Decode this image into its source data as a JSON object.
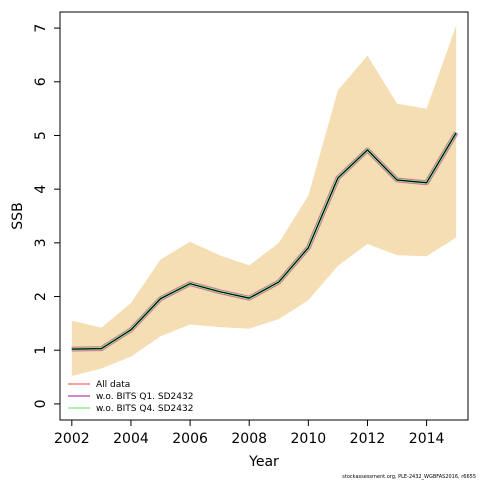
{
  "chart_data": {
    "type": "area",
    "xlabel": "Year",
    "ylabel": "SSB",
    "xlim": [
      2001.6,
      2015.4
    ],
    "ylim": [
      -0.3,
      7.3
    ],
    "x_ticks": [
      2002,
      2004,
      2006,
      2008,
      2010,
      2012,
      2014
    ],
    "y_ticks": [
      0,
      1,
      2,
      3,
      4,
      5,
      6,
      7
    ],
    "grid": false,
    "legend_placement": "bottom-left",
    "x": [
      2002,
      2003,
      2004,
      2005,
      2006,
      2007,
      2008,
      2009,
      2010,
      2011,
      2012,
      2013,
      2014,
      2015
    ],
    "band": {
      "color": "#f5deb3",
      "upper": [
        1.55,
        1.42,
        1.88,
        2.69,
        3.02,
        2.77,
        2.58,
        3.0,
        3.88,
        5.84,
        6.49,
        5.59,
        5.5,
        7.05
      ],
      "lower": [
        0.52,
        0.66,
        0.88,
        1.26,
        1.48,
        1.43,
        1.4,
        1.58,
        1.93,
        2.57,
        2.98,
        2.77,
        2.75,
        3.1
      ]
    },
    "series": [
      {
        "name": "All data",
        "color": "#f08080",
        "values": [
          1.02,
          1.03,
          1.38,
          1.96,
          2.24,
          2.09,
          1.97,
          2.27,
          2.91,
          4.21,
          4.73,
          4.17,
          4.12,
          5.05
        ]
      },
      {
        "name": "w.o. BITS Q1. SD2432",
        "color": "#c060c0",
        "values": [
          1.02,
          1.03,
          1.38,
          1.96,
          2.24,
          2.09,
          1.97,
          2.27,
          2.91,
          4.21,
          4.73,
          4.17,
          4.12,
          5.05
        ]
      },
      {
        "name": "w.o. BITS Q4. SD2432",
        "color": "#90ee90",
        "values": [
          1.02,
          1.03,
          1.38,
          1.96,
          2.24,
          2.09,
          1.97,
          2.27,
          2.91,
          4.21,
          4.73,
          4.17,
          4.12,
          5.05
        ]
      }
    ],
    "estimate_line_color": "#000000",
    "footnote": "stockassessment.org, PLE-2432_WGBFAS2016, r6655"
  }
}
